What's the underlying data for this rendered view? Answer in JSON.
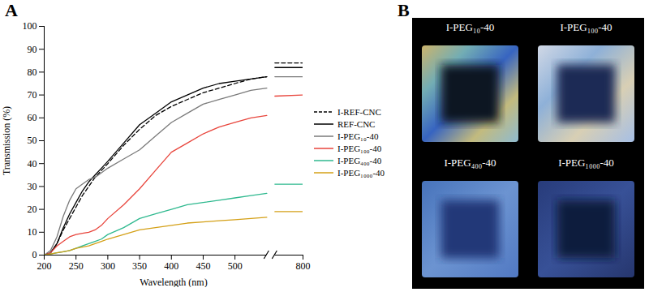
{
  "chart_data": {
    "type": "line",
    "panel": "A",
    "x_label": "Wavelength (nm)",
    "y_label": "Transmission (%)",
    "x": [
      200,
      210,
      220,
      230,
      240,
      250,
      260,
      270,
      280,
      290,
      300,
      325,
      350,
      375,
      400,
      425,
      450,
      475,
      500,
      525,
      550,
      780,
      800
    ],
    "xlim": [
      200,
      800
    ],
    "xticks": [
      200,
      250,
      300,
      350,
      400,
      450,
      500,
      800
    ],
    "ylim": [
      0,
      100
    ],
    "yticks": [
      0,
      10,
      20,
      30,
      40,
      50,
      60,
      70,
      80,
      90,
      100
    ],
    "grid": false,
    "legend": "right",
    "series": [
      {
        "name": "I-REF-CNC",
        "color": "#000000",
        "line_style": "dashed",
        "values": [
          0,
          1,
          5,
          11,
          16,
          21,
          26,
          30,
          34,
          37,
          40,
          48,
          55,
          61,
          65,
          68,
          71,
          73,
          75,
          77,
          78,
          84,
          84
        ]
      },
      {
        "name": "REF-CNC",
        "color": "#000000",
        "line_style": "solid",
        "values": [
          0,
          1,
          5,
          12,
          18,
          23,
          28,
          32,
          35,
          38,
          41,
          49,
          57,
          62,
          67,
          70,
          73,
          75,
          76,
          77,
          78,
          82,
          82
        ]
      },
      {
        "name": "I-PEG₁₀-40",
        "color": "#7a7a7a",
        "line_style": "solid",
        "values": [
          0,
          2,
          8,
          17,
          24,
          29,
          31,
          33,
          34,
          36,
          38,
          42,
          46,
          52,
          58,
          62,
          66,
          68,
          70,
          72,
          73,
          78,
          78
        ]
      },
      {
        "name": "I-PEG₁₀₀-40",
        "color": "#e8453c",
        "line_style": "solid",
        "values": [
          0,
          1,
          4,
          6,
          8,
          9,
          9.5,
          10,
          11,
          13,
          16,
          22,
          29,
          37,
          45,
          49,
          53,
          56,
          58,
          60,
          61,
          69.5,
          70
        ]
      },
      {
        "name": "I-PEG₄₀₀-40",
        "color": "#2fb98f",
        "line_style": "solid",
        "values": [
          0,
          0.5,
          1,
          1.5,
          2,
          3,
          4,
          5,
          6,
          7,
          9,
          12,
          16,
          18,
          20,
          22,
          23,
          24,
          25,
          26,
          27,
          31,
          31
        ]
      },
      {
        "name": "I-PEG₁₀₀₀-40",
        "color": "#d4a017",
        "line_style": "solid",
        "values": [
          0,
          0.5,
          1,
          1.5,
          2,
          3,
          3.5,
          4,
          5,
          6,
          7,
          9,
          11,
          12,
          13,
          14,
          14.5,
          15,
          15.5,
          16,
          16.5,
          19,
          19
        ]
      }
    ]
  },
  "photos": {
    "panel": "B",
    "labels": [
      "I-PEG₁₀-40",
      "I-PEG₁₀₀-40",
      "I-PEG₄₀₀-40",
      "I-PEG₁₀₀₀-40"
    ]
  }
}
